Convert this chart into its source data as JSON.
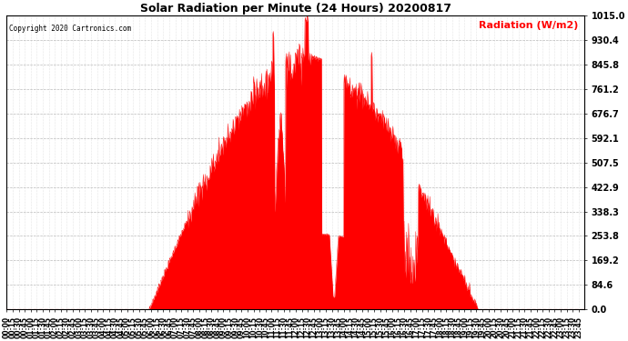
{
  "title": "Solar Radiation per Minute (24 Hours) 20200817",
  "copyright": "Copyright 2020 Cartronics.com",
  "ylabel": "Radiation (W/m2)",
  "ylabel_color": "red",
  "yticks": [
    0.0,
    84.6,
    169.2,
    253.8,
    338.3,
    422.9,
    507.5,
    592.1,
    676.7,
    761.2,
    845.8,
    930.4,
    1015.0
  ],
  "ymax": 1015.0,
  "ymin": 0.0,
  "fill_color": "red",
  "line_color": "red",
  "bg_color": "white",
  "grid_color": "#aaaaaa",
  "hline_color": "red",
  "total_minutes": 1440,
  "sunrise": 355,
  "sunset": 1175,
  "peak_scale": 870.0
}
